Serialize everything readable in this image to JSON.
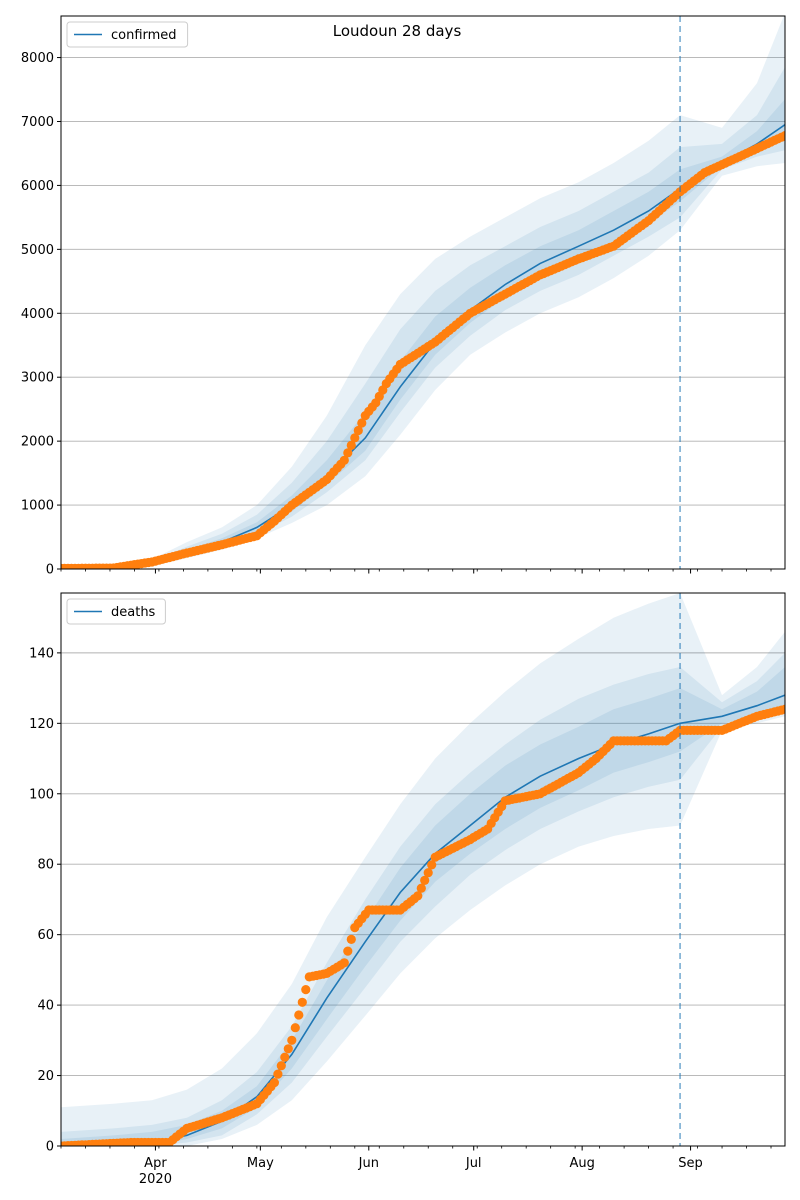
{
  "figure": {
    "title": "Loudoun 28 days"
  },
  "colors": {
    "model": "#1f77b4",
    "observed": "#ff7f0e",
    "band": "#1f77b4",
    "grid": "#b0b0b0",
    "forecast_line": "#1f77b4"
  },
  "x_axis": {
    "month_ticks": [
      "Apr",
      "May",
      "Jun",
      "Jul",
      "Aug",
      "Sep"
    ],
    "year_label": "2020",
    "range": [
      "2020-03-05",
      "2020-09-28"
    ]
  },
  "forecast_start": "2020-08-29",
  "chart_data": [
    {
      "type": "line",
      "legend": "confirmed",
      "legend_location": "upper left",
      "grid": "horizontal",
      "ylim": [
        0,
        8650
      ],
      "yticks": [
        "0",
        "1000",
        "2000",
        "3000",
        "4000",
        "5000",
        "6000",
        "7000",
        "8000"
      ],
      "model_curve": {
        "x": [
          "2020-03-05",
          "2020-03-20",
          "2020-03-31",
          "2020-04-10",
          "2020-04-20",
          "2020-04-30",
          "2020-05-10",
          "2020-05-20",
          "2020-05-31",
          "2020-06-10",
          "2020-06-20",
          "2020-06-30",
          "2020-07-10",
          "2020-07-20",
          "2020-07-31",
          "2020-08-10",
          "2020-08-20",
          "2020-08-29",
          "2020-09-10",
          "2020-09-20",
          "2020-09-28"
        ],
        "y": [
          0,
          10,
          80,
          260,
          420,
          650,
          1000,
          1450,
          2050,
          2850,
          3550,
          4050,
          4450,
          4780,
          5050,
          5300,
          5600,
          5950,
          6350,
          6650,
          6950
        ]
      },
      "bands": [
        {
          "lower": [
            0,
            0,
            40,
            170,
            300,
            480,
            720,
            1000,
            1450,
            2100,
            2800,
            3350,
            3700,
            4000,
            4250,
            4550,
            4900,
            5300,
            6150,
            6300,
            6350
          ],
          "upper": [
            0,
            30,
            150,
            420,
            650,
            1000,
            1600,
            2400,
            3500,
            4300,
            4850,
            5200,
            5500,
            5800,
            6050,
            6350,
            6700,
            7100,
            6900,
            7600,
            8700
          ]
        },
        {
          "lower": [
            0,
            3,
            55,
            200,
            340,
            540,
            820,
            1200,
            1700,
            2450,
            3150,
            3650,
            4050,
            4350,
            4600,
            4900,
            5200,
            5500,
            6250,
            6450,
            6550
          ],
          "upper": [
            0,
            20,
            120,
            350,
            550,
            850,
            1350,
            2000,
            2900,
            3750,
            4350,
            4750,
            5050,
            5350,
            5600,
            5900,
            6200,
            6600,
            6650,
            7100,
            7850
          ]
        },
        {
          "lower": [
            0,
            6,
            65,
            225,
            370,
            590,
            900,
            1320,
            1850,
            2650,
            3350,
            3850,
            4250,
            4550,
            4830,
            5100,
            5400,
            5750,
            6300,
            6550,
            6750
          ],
          "upper": [
            0,
            15,
            100,
            300,
            480,
            730,
            1150,
            1700,
            2450,
            3250,
            3950,
            4400,
            4750,
            5050,
            5300,
            5600,
            5900,
            6250,
            6450,
            6850,
            7350
          ]
        }
      ],
      "observed": {
        "x": [
          "2020-03-05",
          "2020-03-20",
          "2020-03-25",
          "2020-03-31",
          "2020-04-05",
          "2020-04-10",
          "2020-04-20",
          "2020-04-30",
          "2020-05-05",
          "2020-05-10",
          "2020-05-20",
          "2020-05-25",
          "2020-05-28",
          "2020-05-31",
          "2020-06-03",
          "2020-06-06",
          "2020-06-10",
          "2020-06-20",
          "2020-06-30",
          "2020-07-10",
          "2020-07-20",
          "2020-07-31",
          "2020-08-10",
          "2020-08-20",
          "2020-08-29",
          "2020-09-05",
          "2020-09-15",
          "2020-09-28"
        ],
        "y": [
          10,
          15,
          60,
          110,
          180,
          250,
          380,
          520,
          750,
          1000,
          1400,
          1700,
          2050,
          2400,
          2600,
          2900,
          3200,
          3550,
          4000,
          4300,
          4600,
          4850,
          5050,
          5450,
          5900,
          6200,
          6450,
          6780
        ]
      }
    },
    {
      "type": "line",
      "legend": "deaths",
      "legend_location": "upper left",
      "grid": "horizontal",
      "ylim": [
        0,
        157
      ],
      "yticks": [
        "0",
        "20",
        "40",
        "60",
        "80",
        "100",
        "120",
        "140"
      ],
      "model_curve": {
        "x": [
          "2020-03-05",
          "2020-03-20",
          "2020-03-31",
          "2020-04-10",
          "2020-04-20",
          "2020-04-30",
          "2020-05-10",
          "2020-05-20",
          "2020-05-31",
          "2020-06-10",
          "2020-06-20",
          "2020-06-30",
          "2020-07-10",
          "2020-07-20",
          "2020-07-31",
          "2020-08-10",
          "2020-08-20",
          "2020-08-29",
          "2020-09-10",
          "2020-09-20",
          "2020-09-28"
        ],
        "y": [
          0,
          0,
          1,
          3,
          7,
          14,
          26,
          42,
          58,
          72,
          83,
          91,
          99,
          105,
          110,
          114,
          117,
          120,
          122,
          125,
          128
        ]
      },
      "bands": [
        {
          "lower": [
            0,
            0,
            0,
            0,
            2,
            6,
            13,
            24,
            37,
            49,
            59,
            67,
            74,
            80,
            85,
            88,
            90,
            91,
            118,
            120,
            122
          ],
          "upper": [
            11,
            12,
            13,
            16,
            22,
            32,
            46,
            65,
            82,
            97,
            110,
            120,
            129,
            137,
            144,
            150,
            154,
            157,
            128,
            136,
            146
          ]
        },
        {
          "lower": [
            0,
            0,
            0,
            1,
            3,
            9,
            18,
            31,
            45,
            58,
            68,
            77,
            84,
            90,
            95,
            99,
            102,
            104,
            119,
            121,
            124
          ],
          "upper": [
            4,
            5,
            6,
            8,
            13,
            21,
            34,
            52,
            70,
            85,
            97,
            106,
            114,
            121,
            127,
            131,
            134,
            136,
            126,
            132,
            140
          ]
        },
        {
          "lower": [
            0,
            0,
            0,
            2,
            5,
            11,
            22,
            36,
            51,
            64,
            75,
            83,
            90,
            96,
            101,
            106,
            109,
            112,
            120,
            122,
            125
          ],
          "upper": [
            2,
            3,
            4,
            6,
            10,
            17,
            30,
            47,
            64,
            79,
            91,
            100,
            108,
            114,
            119,
            124,
            127,
            130,
            124,
            129,
            136
          ]
        }
      ],
      "observed": {
        "x": [
          "2020-03-05",
          "2020-03-25",
          "2020-04-05",
          "2020-04-10",
          "2020-04-20",
          "2020-04-30",
          "2020-05-05",
          "2020-05-10",
          "2020-05-15",
          "2020-05-20",
          "2020-05-25",
          "2020-05-28",
          "2020-06-01",
          "2020-06-10",
          "2020-06-15",
          "2020-06-20",
          "2020-06-30",
          "2020-07-05",
          "2020-07-10",
          "2020-07-20",
          "2020-07-31",
          "2020-08-05",
          "2020-08-10",
          "2020-08-20",
          "2020-08-25",
          "2020-08-29",
          "2020-09-10",
          "2020-09-20",
          "2020-09-28"
        ],
        "y": [
          0,
          1,
          1,
          5,
          8,
          12,
          18,
          30,
          48,
          49,
          52,
          62,
          67,
          67,
          71,
          82,
          87,
          90,
          98,
          100,
          106,
          110,
          115,
          115,
          115,
          118,
          118,
          122,
          124
        ]
      }
    }
  ]
}
